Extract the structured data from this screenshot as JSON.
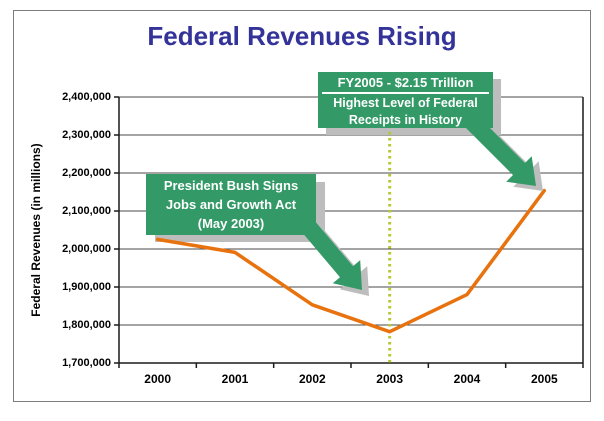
{
  "chart_data": {
    "type": "line",
    "title": "Federal Revenues Rising",
    "title_color": "#333399",
    "categories": [
      "2000",
      "2001",
      "2002",
      "2003",
      "2004",
      "2005"
    ],
    "series": [
      {
        "name": "Federal Revenues",
        "color": "#E8720E",
        "values": [
          2025200,
          1991100,
          1853100,
          1782300,
          1880100,
          2153600
        ]
      }
    ],
    "xlabel": "",
    "ylabel": "Federal Revenues (in millions)",
    "ylim": [
      1700000,
      2400000
    ],
    "ytick_step": 100000,
    "ytick_labels": [
      "1,700,000",
      "1,800,000",
      "1,900,000",
      "2,000,000",
      "2,100,000",
      "2,200,000",
      "2,300,000",
      "2,400,000"
    ],
    "grid": true,
    "legend": "none",
    "divider": {
      "category": "2003",
      "style": "dotted",
      "color": "#B8C72E"
    }
  },
  "annotations": {
    "fy2005": {
      "line1": "FY2005 - $2.15 Trillion",
      "line2": "Highest Level of Federal",
      "line3": "Receipts in History",
      "bg_color": "#339966",
      "text_color": "#FFFFFF",
      "shadow_color": "#BDBDBD"
    },
    "bush": {
      "line1": "President Bush Signs",
      "line2": "Jobs and Growth Act",
      "line3": "(May 2003)",
      "bg_color": "#339966",
      "text_color": "#FFFFFF",
      "shadow_color": "#BDBDBD"
    },
    "arrow_color": "#339966"
  },
  "frame": {
    "border_color": "#7D7D7D",
    "background": "#FFFFFF"
  }
}
